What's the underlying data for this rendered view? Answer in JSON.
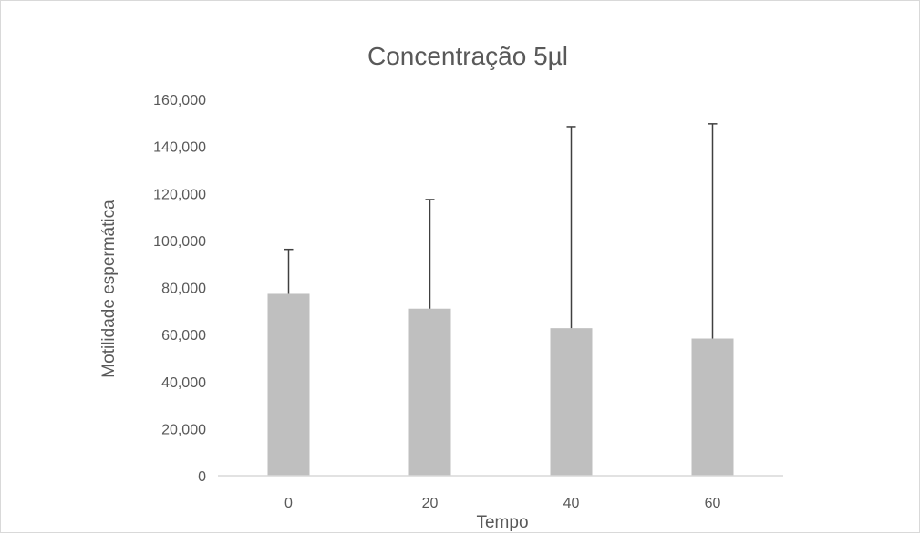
{
  "chart_data": {
    "type": "bar",
    "title": "Concentração 5µl",
    "xlabel": "Tempo",
    "ylabel": "Motilidade espermática",
    "categories": [
      "0",
      "20",
      "40",
      "60"
    ],
    "values": [
      77.3,
      71.0,
      62.7,
      58.3
    ],
    "error_upper": [
      96.2,
      117.4,
      148.4,
      149.6
    ],
    "ylim": [
      0,
      160
    ],
    "yticks": [
      0,
      20,
      40,
      60,
      80,
      100,
      120,
      140,
      160
    ],
    "ytick_labels": [
      "0",
      "20,000",
      "40,000",
      "60,000",
      "80,000",
      "100,000",
      "120,000",
      "140,000",
      "160,000"
    ],
    "grid": false,
    "legend": "none",
    "colors": {
      "bar": "#bfbfbf",
      "error_bar": "#404040",
      "axis": "#d9d9d9",
      "text": "#595959"
    }
  }
}
